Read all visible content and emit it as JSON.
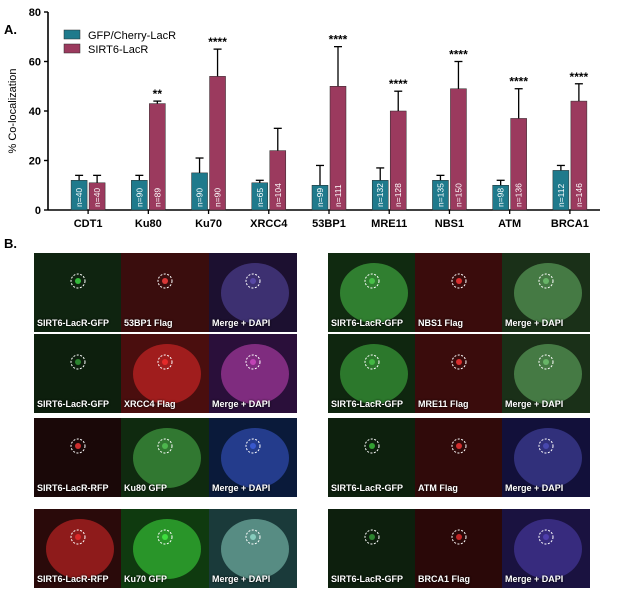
{
  "figure": {
    "panel_a_label": "A.",
    "panel_b_label": "B."
  },
  "chart_data": {
    "type": "bar",
    "ylabel": "% Co-localization",
    "xlabel": "",
    "ylim": [
      0,
      80
    ],
    "yticks": [
      0,
      20,
      40,
      60,
      80
    ],
    "categories": [
      "CDT1",
      "Ku80",
      "Ku70",
      "XRCC4",
      "53BP1",
      "MRE11",
      "NBS1",
      "ATM",
      "BRCA1"
    ],
    "legend_position": "top-left",
    "series": [
      {
        "name": "GFP/Cherry-LacR",
        "color": "#1f7a8c",
        "values": [
          12,
          12,
          15,
          11,
          10,
          12,
          12,
          10,
          16
        ],
        "errors": [
          2,
          2,
          6,
          1,
          8,
          5,
          2,
          2,
          2
        ],
        "n_labels": [
          "n=40",
          "n=90",
          "n=90",
          "n=65",
          "n=99",
          "n=132",
          "n=135",
          "n=98",
          "n=112"
        ],
        "significance": [
          "",
          "",
          "",
          "",
          "",
          "",
          "",
          "",
          ""
        ]
      },
      {
        "name": "SIRT6-LacR",
        "color": "#9b3a5e",
        "values": [
          11,
          43,
          54,
          24,
          50,
          40,
          49,
          37,
          44
        ],
        "errors": [
          3,
          1,
          11,
          9,
          16,
          8,
          11,
          12,
          7
        ],
        "n_labels": [
          "n=40",
          "n=89",
          "n=90",
          "n=104",
          "n=111",
          "n=128",
          "n=150",
          "n=136",
          "n=146"
        ],
        "significance": [
          "",
          "**",
          "****",
          "",
          "****",
          "****",
          "****",
          "****",
          "****"
        ]
      }
    ]
  },
  "panel_b": {
    "left": [
      {
        "tiles": [
          {
            "label": "SIRT6-LacR-GFP",
            "bg": "#0f2410",
            "fg": "#39c23f",
            "blob": false
          },
          {
            "label": "53BP1 Flag",
            "bg": "#3a0d0d",
            "fg": "#e03a3a",
            "blob": false
          },
          {
            "label": "Merge + DAPI",
            "bg": "#1c1030",
            "fg": "#5a4aa8",
            "blob": true
          }
        ]
      },
      {
        "tiles": [
          {
            "label": "SIRT6-LacR-GFP",
            "bg": "#0d1f0d",
            "fg": "#2e8a32",
            "blob": false
          },
          {
            "label": "XRCC4 Flag",
            "bg": "#4a0e0e",
            "fg": "#e82a2a",
            "blob": true
          },
          {
            "label": "Merge + DAPI",
            "bg": "#2a0f3a",
            "fg": "#c445b8",
            "blob": true
          }
        ]
      },
      {
        "tiles": [
          {
            "label": "SIRT6-LacR-RFP",
            "bg": "#1a0808",
            "fg": "#d63030",
            "blob": false
          },
          {
            "label": "Ku80 GFP",
            "bg": "#0f2a0f",
            "fg": "#4fb84f",
            "blob": true
          },
          {
            "label": "Merge + DAPI",
            "bg": "#0a1a3a",
            "fg": "#3a5ad0",
            "blob": true
          }
        ]
      },
      {
        "tiles": [
          {
            "label": "SIRT6-LacR-RFP",
            "bg": "#2a0a0a",
            "fg": "#e02a2a",
            "blob": true
          },
          {
            "label": "Ku70 GFP",
            "bg": "#0f3a0f",
            "fg": "#40e040",
            "blob": true
          },
          {
            "label": "Merge + DAPI",
            "bg": "#1a3a3a",
            "fg": "#8ad0c0",
            "blob": true
          }
        ]
      }
    ],
    "right": [
      {
        "tiles": [
          {
            "label": "SIRT6-LacR-GFP",
            "bg": "#102a10",
            "fg": "#4ac44a",
            "blob": true
          },
          {
            "label": "NBS1 Flag",
            "bg": "#3a0c0c",
            "fg": "#e03030",
            "blob": false
          },
          {
            "label": "Merge + DAPI",
            "bg": "#1a3018",
            "fg": "#6ab86a",
            "blob": true
          }
        ]
      },
      {
        "tiles": [
          {
            "label": "SIRT6-LacR-GFP",
            "bg": "#0f260f",
            "fg": "#45bc45",
            "blob": true
          },
          {
            "label": "MRE11 Flag",
            "bg": "#3a0c0c",
            "fg": "#e03030",
            "blob": false
          },
          {
            "label": "Merge + DAPI",
            "bg": "#1a3018",
            "fg": "#6ab86a",
            "blob": true
          }
        ]
      },
      {
        "tiles": [
          {
            "label": "SIRT6-LacR-GFP",
            "bg": "#0d200d",
            "fg": "#36a836",
            "blob": false
          },
          {
            "label": "ATM Flag",
            "bg": "#300a0a",
            "fg": "#d83030",
            "blob": false
          },
          {
            "label": "Merge + DAPI",
            "bg": "#12103a",
            "fg": "#4a4ab0",
            "blob": true
          }
        ]
      },
      {
        "tiles": [
          {
            "label": "SIRT6-LacR-GFP",
            "bg": "#0d1f0d",
            "fg": "#2e8a32",
            "blob": false
          },
          {
            "label": "BRCA1 Flag",
            "bg": "#2a0808",
            "fg": "#c82828",
            "blob": false
          },
          {
            "label": "Merge + DAPI",
            "bg": "#1a1240",
            "fg": "#5040b0",
            "blob": true
          }
        ]
      }
    ]
  }
}
